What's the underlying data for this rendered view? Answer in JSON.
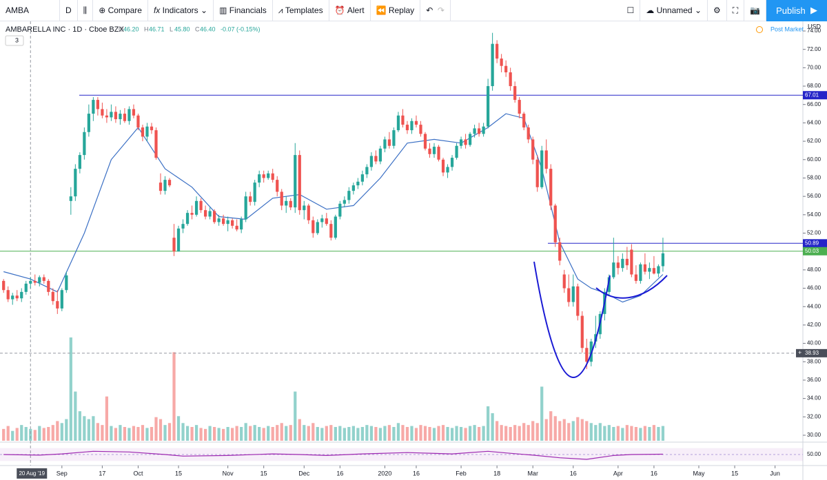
{
  "toolbar": {
    "symbol": "AMBA",
    "interval": "D",
    "buttons": [
      "Compare",
      "Indicators",
      "Financials",
      "Templates",
      "Alert",
      "Replay"
    ],
    "layout_name": "Unnamed",
    "publish": "Publish"
  },
  "legend": {
    "title": "AMBARELLA INC · 1D · Cboe BZX",
    "ohlc": [
      {
        "key": "O",
        "value": "46.20"
      },
      {
        "key": "H",
        "value": "46.71"
      },
      {
        "key": "L",
        "value": "45.80"
      },
      {
        "key": "C",
        "value": "46.40"
      }
    ],
    "change": "-0.07 (-0.15%)",
    "collapsed": "3",
    "currency": "USD",
    "session": "Post Market"
  },
  "chart_data": {
    "type": "candlestick",
    "up_color": "#26a69a",
    "down_color": "#ef5350",
    "candles": [
      [
        46.8,
        47,
        45.5,
        45.8
      ],
      [
        45.8,
        46.2,
        44.5,
        44.8
      ],
      [
        44.8,
        45.5,
        44.2,
        45.2
      ],
      [
        45.2,
        45.8,
        44.6,
        44.9
      ],
      [
        44.9,
        46,
        44.5,
        45.6
      ],
      [
        45.6,
        46.8,
        45.3,
        46.5
      ],
      [
        46.5,
        47.2,
        46,
        46.8
      ],
      [
        46.8,
        47.5,
        46.3,
        46.6
      ],
      [
        46.6,
        47.4,
        46.2,
        47.2
      ],
      [
        47.2,
        47.5,
        46.5,
        46.8
      ],
      [
        46.8,
        47,
        45.2,
        45.6
      ],
      [
        45.6,
        46,
        44.2,
        44.6
      ],
      [
        44.6,
        45.8,
        43.2,
        43.8
      ],
      [
        43.8,
        46,
        43.5,
        45.8
      ],
      [
        45.8,
        47.8,
        45.5,
        47.4
      ],
      [
        55.5,
        57,
        54,
        56
      ],
      [
        56,
        59.5,
        55.5,
        59
      ],
      [
        59,
        60.8,
        58.5,
        60.5
      ],
      [
        60.5,
        63.5,
        60,
        63
      ],
      [
        63,
        66,
        62.5,
        65
      ],
      [
        65,
        66.8,
        64.2,
        66.5
      ],
      [
        66.5,
        66.8,
        64.8,
        65.5
      ],
      [
        65.5,
        66.2,
        64.5,
        64.8
      ],
      [
        64.8,
        65.5,
        64,
        64.6
      ],
      [
        64.6,
        66,
        64.2,
        65.2
      ],
      [
        65.2,
        65.8,
        64,
        64.4
      ],
      [
        64.4,
        65.4,
        63.8,
        65
      ],
      [
        65,
        65.6,
        64,
        64.2
      ],
      [
        64.2,
        65.8,
        63.8,
        65.5
      ],
      [
        65.5,
        66,
        64.5,
        64.8
      ],
      [
        64.8,
        65,
        63.2,
        63.5
      ],
      [
        63.5,
        63.8,
        62,
        62.5
      ],
      [
        62.5,
        64,
        62,
        63.6
      ],
      [
        63.6,
        64,
        62.8,
        63.2
      ],
      [
        63.2,
        63.5,
        60,
        60.2
      ],
      [
        57.5,
        58.5,
        56.2,
        56.6
      ],
      [
        56.6,
        58.2,
        56.2,
        57.8
      ],
      [
        57.8,
        58,
        57,
        57.2
      ],
      [
        51.5,
        53,
        49.5,
        50
      ],
      [
        50,
        52.8,
        50,
        52.5
      ],
      [
        52.5,
        53.5,
        52,
        53
      ],
      [
        53,
        54.5,
        52.8,
        54.2
      ],
      [
        54.2,
        55,
        53.5,
        54
      ],
      [
        54,
        56,
        53.8,
        55.5
      ],
      [
        55.5,
        55.8,
        54.2,
        54.5
      ],
      [
        54.5,
        55,
        53.5,
        53.8
      ],
      [
        53.8,
        54.8,
        53.5,
        54.4
      ],
      [
        54.4,
        54.6,
        53,
        53.2
      ],
      [
        53.2,
        54,
        52.8,
        53.6
      ],
      [
        53.6,
        54,
        52.8,
        53
      ],
      [
        53,
        53.8,
        52.2,
        53.4
      ],
      [
        53.4,
        53.6,
        52.5,
        52.8
      ],
      [
        52.8,
        53.5,
        52.2,
        52.4
      ],
      [
        52.4,
        53.8,
        52,
        53.5
      ],
      [
        53.5,
        56.5,
        53.2,
        56
      ],
      [
        56,
        56.5,
        55,
        55.4
      ],
      [
        55.4,
        57.8,
        55,
        57.5
      ],
      [
        57.5,
        58.8,
        57,
        58.4
      ],
      [
        58.4,
        58.8,
        57.5,
        58
      ],
      [
        58,
        58.8,
        57.8,
        58.5
      ],
      [
        58.5,
        59,
        57.5,
        57.8
      ],
      [
        57.8,
        58.2,
        56,
        56.5
      ],
      [
        56.5,
        56.8,
        54.5,
        55
      ],
      [
        55,
        56,
        54.2,
        55.5
      ],
      [
        55.5,
        55.8,
        54.5,
        54.8
      ],
      [
        54.8,
        61.8,
        54.2,
        60.5
      ],
      [
        60.5,
        61,
        54,
        54.5
      ],
      [
        54.5,
        55.5,
        53.5,
        55
      ],
      [
        55,
        55.2,
        53,
        53.4
      ],
      [
        53.4,
        53.8,
        51.5,
        52
      ],
      [
        52,
        53.5,
        51.8,
        53.2
      ],
      [
        53.2,
        54,
        52.6,
        53.6
      ],
      [
        53.6,
        54.2,
        52.8,
        53
      ],
      [
        53,
        53.4,
        51.2,
        51.5
      ],
      [
        51.5,
        54,
        51.3,
        53.8
      ],
      [
        53.8,
        55.5,
        53.5,
        55.2
      ],
      [
        55.2,
        56,
        54.8,
        55.6
      ],
      [
        55.6,
        57,
        55.2,
        56.6
      ],
      [
        56.6,
        57.5,
        56.2,
        57.2
      ],
      [
        57.2,
        58,
        56.8,
        57.6
      ],
      [
        57.6,
        58.8,
        57.2,
        58.4
      ],
      [
        58.4,
        59.5,
        58,
        59.2
      ],
      [
        59.2,
        60.8,
        58.8,
        60.4
      ],
      [
        60.4,
        61,
        59.5,
        59.8
      ],
      [
        59.8,
        61.5,
        59.5,
        61.2
      ],
      [
        61.2,
        62.5,
        60.8,
        62.2
      ],
      [
        62.2,
        63,
        61.2,
        61.5
      ],
      [
        61.5,
        63.5,
        61.2,
        63.2
      ],
      [
        63.2,
        65.2,
        63,
        64.8
      ],
      [
        64.8,
        65.5,
        63.5,
        63.8
      ],
      [
        63.8,
        64.2,
        62.8,
        63.2
      ],
      [
        63.2,
        64.5,
        62.8,
        64.2
      ],
      [
        64.2,
        64.8,
        63.5,
        63.8
      ],
      [
        63.8,
        64.2,
        62.5,
        62.8
      ],
      [
        62.8,
        63,
        61,
        61.2
      ],
      [
        61.2,
        61.8,
        60.2,
        60.6
      ],
      [
        60.6,
        61.8,
        60.2,
        61.4
      ],
      [
        61.4,
        61.6,
        59.8,
        60
      ],
      [
        60,
        60.2,
        58.2,
        58.6
      ],
      [
        58.6,
        59.5,
        58,
        59.2
      ],
      [
        59.2,
        60.5,
        58.8,
        60.2
      ],
      [
        60.2,
        61.8,
        60,
        61.5
      ],
      [
        61.5,
        62.5,
        61.2,
        62.2
      ],
      [
        62.2,
        62.8,
        61.2,
        61.6
      ],
      [
        61.6,
        63,
        61.4,
        62.8
      ],
      [
        62.8,
        63.8,
        62.4,
        63.4
      ],
      [
        63.4,
        64,
        62.5,
        62.8
      ],
      [
        62.8,
        64,
        62.5,
        63.6
      ],
      [
        63.6,
        68.8,
        63.4,
        68
      ],
      [
        68,
        73.8,
        67.5,
        72.6
      ],
      [
        72.6,
        73,
        70.5,
        71
      ],
      [
        71,
        71.5,
        69.5,
        70.2
      ],
      [
        70.2,
        70.8,
        69,
        69.5
      ],
      [
        69.5,
        70,
        67.5,
        68
      ],
      [
        68,
        68.5,
        66.2,
        66.5
      ],
      [
        66.5,
        66.8,
        64.5,
        65
      ],
      [
        65,
        65.2,
        63.2,
        63.5
      ],
      [
        63.5,
        63.8,
        61.8,
        62.2
      ],
      [
        62.2,
        62.5,
        59.5,
        60
      ],
      [
        60,
        60.5,
        56.5,
        57
      ],
      [
        57,
        61.5,
        56.8,
        61
      ],
      [
        61,
        62.2,
        58.5,
        59
      ],
      [
        59,
        59.5,
        54.5,
        55
      ],
      [
        55,
        55.2,
        50.5,
        51
      ],
      [
        51,
        51.5,
        48.5,
        49
      ],
      [
        47.5,
        48,
        45.5,
        46
      ],
      [
        46,
        47.5,
        44,
        44.5
      ],
      [
        44.5,
        47.5,
        44,
        46.2
      ],
      [
        46.2,
        46.5,
        42.5,
        43
      ],
      [
        43,
        43.5,
        39,
        39.5
      ],
      [
        39.5,
        40.5,
        37.2,
        38
      ],
      [
        38,
        40.5,
        37.5,
        40.2
      ],
      [
        40.2,
        43,
        39.5,
        41
      ],
      [
        41,
        43.5,
        40.5,
        43.2
      ],
      [
        43.2,
        46,
        42.5,
        45.6
      ],
      [
        45.6,
        47.5,
        45.2,
        47.2
      ],
      [
        47.2,
        51.5,
        47,
        48.8
      ],
      [
        48.8,
        49.5,
        47.5,
        48.2
      ],
      [
        48.2,
        49.8,
        47.8,
        49.2
      ],
      [
        49.2,
        50.5,
        48,
        48.5
      ],
      [
        50.2,
        50.8,
        47.2,
        47.5
      ],
      [
        47.5,
        48.5,
        46.5,
        46.8
      ],
      [
        46.8,
        48.8,
        46.5,
        48.6
      ],
      [
        48.6,
        49.8,
        47.5,
        47.8
      ],
      [
        47.8,
        48.8,
        47,
        48.2
      ],
      [
        48.2,
        49.5,
        47.5,
        47.6
      ],
      [
        47.6,
        48.6,
        47.2,
        48.4
      ],
      [
        48.4,
        51.5,
        47.8,
        49.8
      ]
    ],
    "volume": [
      1.2,
      1.5,
      1,
      1.3,
      1.6,
      1.4,
      1.2,
      1.1,
      1.5,
      1.3,
      1.4,
      1.6,
      2,
      1.8,
      2.2,
      10.5,
      5,
      3,
      2.5,
      2.2,
      2.5,
      1.8,
      1.6,
      4.5,
      1.5,
      1.3,
      1.6,
      1.4,
      1.3,
      1.5,
      1.4,
      1.6,
      1.3,
      1.4,
      2.4,
      2.2,
      1.6,
      1.8,
      9,
      2.5,
      1.8,
      1.5,
      1.4,
      1.6,
      1.3,
      1.2,
      1.5,
      1.4,
      1.3,
      1.2,
      1.4,
      1.3,
      1.5,
      1.4,
      1.8,
      1.5,
      1.6,
      1.4,
      1.3,
      1.5,
      1.4,
      1.6,
      1.8,
      1.5,
      1.6,
      5,
      2.2,
      1.6,
      1.5,
      1.8,
      1.4,
      1.3,
      1.5,
      1.6,
      1.4,
      1.5,
      1.3,
      1.4,
      1.5,
      1.3,
      1.4,
      1.6,
      1.5,
      1.4,
      1.3,
      1.5,
      1.6,
      1.4,
      1.8,
      1.6,
      1.4,
      1.5,
      1.3,
      1.6,
      1.5,
      1.4,
      1.3,
      1.5,
      1.6,
      1.4,
      1.3,
      1.5,
      1.4,
      1.3,
      1.5,
      1.6,
      1.4,
      1.5,
      3.5,
      2.8,
      2,
      1.6,
      1.5,
      1.4,
      1.6,
      1.5,
      1.8,
      1.6,
      2,
      1.8,
      5.5,
      2.2,
      3,
      2.5,
      2,
      2.2,
      1.8,
      2,
      2.4,
      2.2,
      2,
      1.8,
      1.6,
      1.8,
      1.5,
      1.6,
      1.4,
      1.5,
      1.3,
      1.6,
      1.5,
      1.4,
      1.3,
      1.5,
      1.4,
      1.6,
      1.4,
      1.5
    ],
    "xlim": [
      -0.8,
      178.2
    ],
    "xticks": [
      {
        "value": 13,
        "label": "Sep"
      },
      {
        "value": 22,
        "label": "17"
      },
      {
        "value": 30,
        "label": "Oct"
      },
      {
        "value": 39,
        "label": "15"
      },
      {
        "value": 50,
        "label": "Nov"
      },
      {
        "value": 58,
        "label": "15"
      },
      {
        "value": 67,
        "label": "Dec"
      },
      {
        "value": 75,
        "label": "16"
      },
      {
        "value": 85,
        "label": "2020"
      },
      {
        "value": 92,
        "label": "16"
      },
      {
        "value": 102,
        "label": "Feb"
      },
      {
        "value": 110,
        "label": "18"
      },
      {
        "value": 118,
        "label": "Mar"
      },
      {
        "value": 127,
        "label": "16"
      },
      {
        "value": 137,
        "label": "Apr"
      },
      {
        "value": 145,
        "label": "16"
      },
      {
        "value": 155,
        "label": "May"
      },
      {
        "value": 163,
        "label": "15"
      },
      {
        "value": 172,
        "label": "Jun"
      }
    ],
    "ylim": [
      29.4,
      75.05
    ],
    "yticks": [
      {
        "value": 30,
        "label": "30.00"
      },
      {
        "value": 32,
        "label": "32.00"
      },
      {
        "value": 34,
        "label": "34.00"
      },
      {
        "value": 36,
        "label": "36.00"
      },
      {
        "value": 38,
        "label": "38.00"
      },
      {
        "value": 40,
        "label": "40.00"
      },
      {
        "value": 42,
        "label": "42.00"
      },
      {
        "value": 44,
        "label": "44.00"
      },
      {
        "value": 46,
        "label": "46.00"
      },
      {
        "value": 48,
        "label": "48.00"
      },
      {
        "value": 50,
        "label": "50.00"
      },
      {
        "value": 52,
        "label": "52.00"
      },
      {
        "value": 54,
        "label": "54.00"
      },
      {
        "value": 56,
        "label": "56.00"
      },
      {
        "value": 58,
        "label": "58.00"
      },
      {
        "value": 60,
        "label": "60.00"
      },
      {
        "value": 62,
        "label": "62.00"
      },
      {
        "value": 64,
        "label": "64.00"
      },
      {
        "value": 66,
        "label": "66.00"
      },
      {
        "value": 68,
        "label": "68.00"
      },
      {
        "value": 70,
        "label": "70.00"
      },
      {
        "value": 72,
        "label": "72.00"
      },
      {
        "value": 74,
        "label": "74.00"
      }
    ],
    "ma": {
      "color": "#3a6fc4",
      "x": [
        0,
        6,
        12,
        18,
        24,
        30,
        36,
        42,
        48,
        54,
        60,
        66,
        72,
        78,
        84,
        90,
        96,
        102,
        108,
        112,
        116,
        120,
        124,
        128,
        131,
        134,
        138,
        142,
        147
      ],
      "values": [
        47.8,
        47,
        45.6,
        52,
        60,
        63.5,
        59,
        57,
        53.8,
        53.5,
        55.8,
        56.2,
        54.6,
        55,
        58,
        61.8,
        62.2,
        61.8,
        63.5,
        65,
        64.5,
        59,
        51,
        47,
        46,
        45.5,
        44.5,
        45.2,
        47.5
      ]
    },
    "rsi": {
      "color": "#9c27b0",
      "x": [
        0,
        8,
        13,
        20,
        28,
        36,
        40,
        50,
        60,
        66,
        72,
        80,
        90,
        100,
        108,
        112,
        118,
        124,
        130,
        136,
        140,
        147
      ],
      "values": [
        50,
        48,
        52,
        60,
        58,
        50,
        45,
        47,
        52,
        50,
        47,
        52,
        56,
        52,
        60,
        55,
        48,
        40,
        35,
        47,
        50,
        51
      ],
      "ylim": [
        20,
        80
      ],
      "yticks": [
        {
          "value": 50,
          "label": "50.00"
        }
      ]
    },
    "levels": [
      {
        "value": 67.01,
        "color": "#2424c8"
      },
      {
        "value": 50.89,
        "color": "#2424c8"
      },
      {
        "value": 50.03,
        "color": "#4caf50"
      }
    ],
    "crosshair": {
      "x": 6,
      "label": "20 Aug '19",
      "price": 38.93
    }
  }
}
